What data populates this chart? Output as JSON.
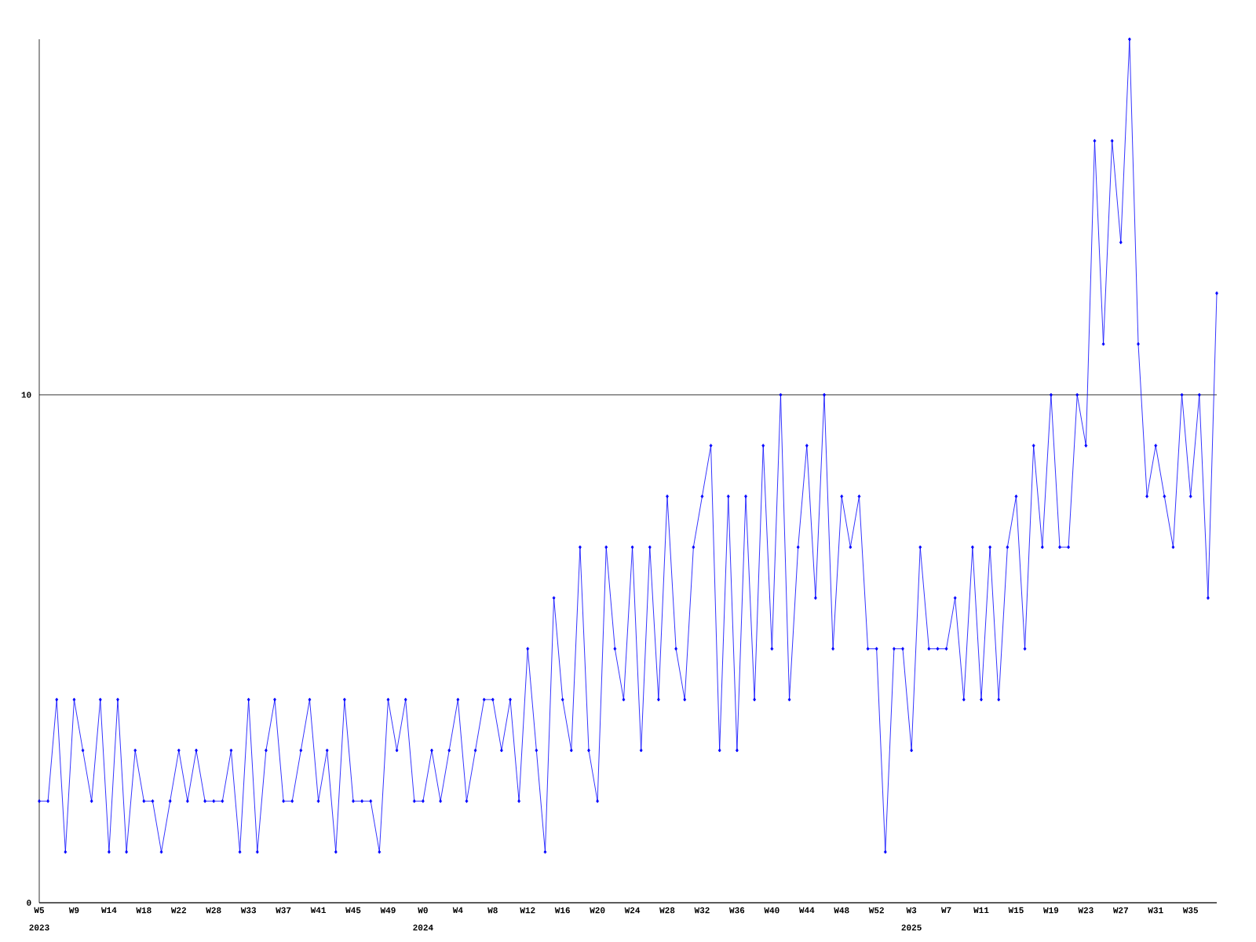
{
  "chart_data": {
    "type": "line",
    "categories": [
      "W5",
      null,
      null,
      null,
      "W9",
      null,
      null,
      null,
      "W14",
      null,
      null,
      null,
      "W18",
      null,
      null,
      null,
      "W22",
      null,
      null,
      null,
      "W28",
      null,
      null,
      null,
      "W33",
      null,
      null,
      null,
      "W37",
      null,
      null,
      null,
      "W41",
      null,
      null,
      null,
      "W45",
      null,
      null,
      null,
      "W49",
      null,
      null,
      null,
      "W0",
      null,
      null,
      null,
      "W4",
      null,
      null,
      null,
      "W8",
      null,
      null,
      null,
      "W12",
      null,
      null,
      null,
      "W16",
      null,
      null,
      null,
      "W20",
      null,
      null,
      null,
      "W24",
      null,
      null,
      null,
      "W28",
      null,
      null,
      null,
      "W32",
      null,
      null,
      null,
      "W36",
      null,
      null,
      null,
      "W40",
      null,
      null,
      null,
      "W44",
      null,
      null,
      null,
      "W48",
      null,
      null,
      null,
      "W52",
      null,
      null,
      null,
      "W3",
      null,
      null,
      null,
      "W7",
      null,
      null,
      null,
      "W11",
      null,
      null,
      null,
      "W15",
      null,
      null,
      null,
      "W19",
      null,
      null,
      null,
      "W23",
      null,
      null,
      null,
      "W27",
      null,
      null,
      null,
      "W31",
      null,
      null,
      null,
      "W35",
      null,
      null,
      null
    ],
    "series": [
      {
        "color": "#0000ff",
        "values": [
          2,
          2,
          4,
          1,
          4,
          3,
          2,
          4,
          1,
          4,
          1,
          3,
          2,
          2,
          1,
          2,
          3,
          2,
          3,
          2,
          2,
          2,
          3,
          1,
          4,
          1,
          3,
          4,
          2,
          2,
          3,
          4,
          2,
          3,
          1,
          4,
          2,
          2,
          2,
          1,
          4,
          3,
          4,
          2,
          2,
          3,
          2,
          3,
          4,
          2,
          3,
          4,
          4,
          3,
          4,
          2,
          5,
          3,
          1,
          6,
          4,
          3,
          7,
          3,
          2,
          7,
          5,
          4,
          7,
          3,
          7,
          4,
          8,
          5,
          4,
          7,
          8,
          9,
          3,
          8,
          3,
          8,
          4,
          9,
          5,
          10,
          4,
          7,
          9,
          6,
          10,
          5,
          8,
          7,
          8,
          5,
          5,
          1,
          5,
          5,
          3,
          7,
          5,
          5,
          5,
          6,
          4,
          7,
          4,
          7,
          4,
          7,
          8,
          5,
          9,
          7,
          10,
          7,
          7,
          10,
          9,
          15,
          11,
          15,
          13,
          17,
          11,
          8,
          9,
          8,
          7,
          10,
          8,
          10,
          6,
          12
        ]
      }
    ],
    "ylim": [
      0,
      17
    ],
    "yticks": [
      0,
      10
    ],
    "grid": "y",
    "marker": "diamond",
    "line_style": "solid",
    "annotations": [
      "2023",
      "2024",
      "2025"
    ]
  }
}
